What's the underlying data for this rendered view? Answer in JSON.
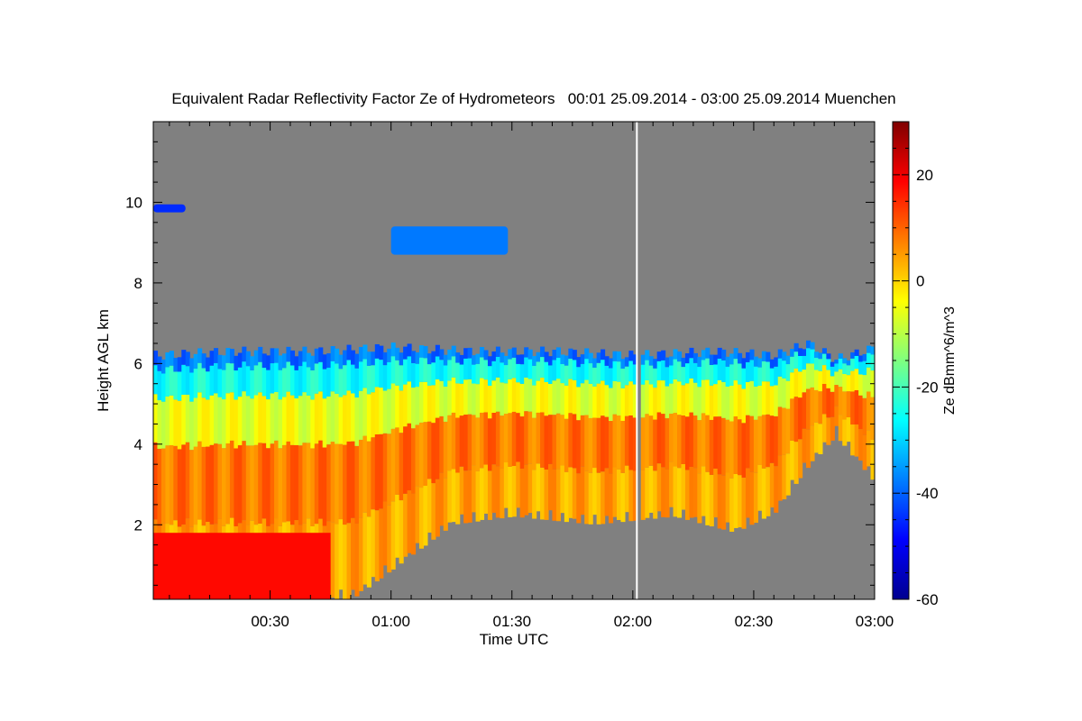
{
  "chart_data": {
    "type": "heatmap",
    "title": "Equivalent Radar Reflectivity Factor Ze of Hydrometeors   00:01 25.09.2014 - 03:00 25.09.2014 Muenchen",
    "xlabel": "Time UTC",
    "ylabel": "Height AGL km",
    "colorbar_label": "Ze dBmm^6/m^3",
    "x_range_minutes": [
      1,
      180
    ],
    "y_range_km": [
      0.15,
      12
    ],
    "colorbar_range": [
      -60,
      30
    ],
    "x_ticks": [
      {
        "minutes": 30,
        "label": "00:30"
      },
      {
        "minutes": 60,
        "label": "01:00"
      },
      {
        "minutes": 90,
        "label": "01:30"
      },
      {
        "minutes": 120,
        "label": "02:00"
      },
      {
        "minutes": 150,
        "label": "02:30"
      },
      {
        "minutes": 180,
        "label": "03:00"
      }
    ],
    "y_ticks": [
      {
        "value": 2,
        "label": "2"
      },
      {
        "value": 4,
        "label": "4"
      },
      {
        "value": 6,
        "label": "6"
      },
      {
        "value": 8,
        "label": "8"
      },
      {
        "value": 10,
        "label": "10"
      }
    ],
    "colorbar_ticks": [
      {
        "value": 20,
        "label": "20"
      },
      {
        "value": 0,
        "label": "0"
      },
      {
        "value": -20,
        "label": "-20"
      },
      {
        "value": -40,
        "label": "-40"
      },
      {
        "value": -60,
        "label": "-60"
      }
    ],
    "cloud_top_km": [
      {
        "t": 1,
        "h": 6.2
      },
      {
        "t": 20,
        "h": 6.3
      },
      {
        "t": 40,
        "h": 6.3
      },
      {
        "t": 60,
        "h": 6.4
      },
      {
        "t": 80,
        "h": 6.3
      },
      {
        "t": 100,
        "h": 6.3
      },
      {
        "t": 120,
        "h": 6.2
      },
      {
        "t": 140,
        "h": 6.3
      },
      {
        "t": 155,
        "h": 6.2
      },
      {
        "t": 163,
        "h": 6.5
      },
      {
        "t": 170,
        "h": 6.1
      },
      {
        "t": 180,
        "h": 6.4
      }
    ],
    "cloud_base_km": [
      {
        "t": 1,
        "h": 0.15
      },
      {
        "t": 50,
        "h": 0.15
      },
      {
        "t": 75,
        "h": 2.0
      },
      {
        "t": 90,
        "h": 2.2
      },
      {
        "t": 110,
        "h": 2.0
      },
      {
        "t": 130,
        "h": 2.2
      },
      {
        "t": 145,
        "h": 1.8
      },
      {
        "t": 155,
        "h": 2.3
      },
      {
        "t": 162,
        "h": 3.3
      },
      {
        "t": 170,
        "h": 4.2
      },
      {
        "t": 180,
        "h": 3.0
      }
    ],
    "upper_cloud_patches": [
      {
        "t_start": 1,
        "t_end": 9,
        "h_bottom": 9.75,
        "h_top": 9.95,
        "ze_dbz": -45
      },
      {
        "t_start": 60,
        "t_end": 89,
        "h_bottom": 8.7,
        "h_top": 9.4,
        "ze_dbz": -38
      }
    ],
    "core_ze_dbz": 10,
    "low_layer": {
      "t_start": 1,
      "t_end": 45,
      "h_top": 1.8,
      "ze_dbz": 18
    },
    "missing_data_minute": 121,
    "colors": {
      "no_signal": "#808080",
      "colormap": [
        "#00008f",
        "#0000ff",
        "#007fff",
        "#00ffff",
        "#7fff7f",
        "#ffff00",
        "#ff7f00",
        "#ff0000",
        "#7f0000"
      ]
    }
  }
}
